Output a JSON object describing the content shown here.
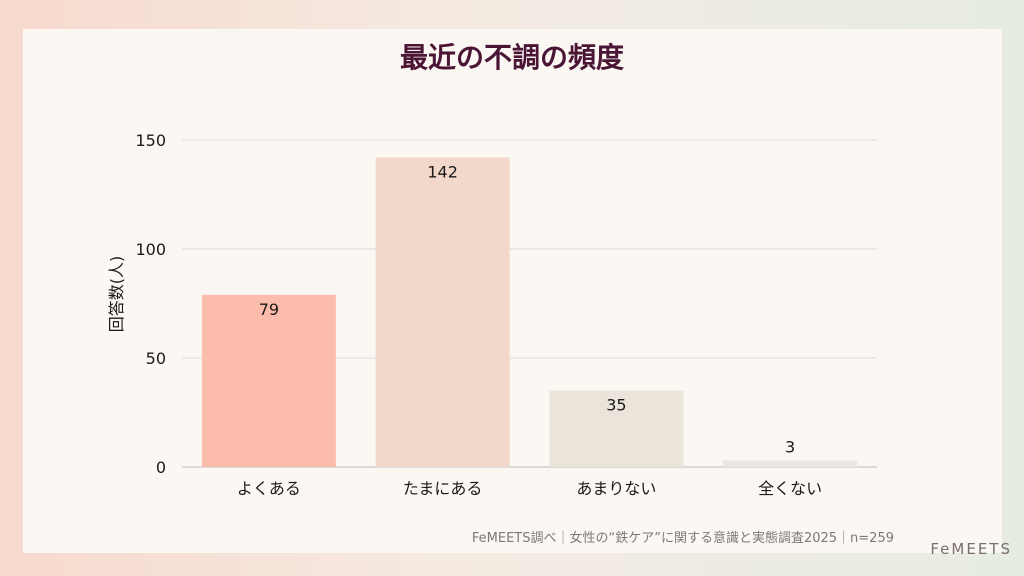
{
  "page": {
    "footnote": "FeMEETS調べ｜女性の“鉄ケア”に関する意識と実態調査2025｜n=259",
    "logo": "FeMEETS"
  },
  "chart_data": {
    "type": "bar",
    "title": "最近の不調の頻度",
    "xlabel": "",
    "ylabel": "回答数(人)",
    "categories": [
      "よくある",
      "たまにある",
      "あまりない",
      "全くない"
    ],
    "values": [
      79,
      142,
      35,
      3
    ],
    "data_labels": [
      "79",
      "142",
      "35",
      "3"
    ],
    "yticks": [
      "0",
      "50",
      "100",
      "150"
    ],
    "ylim": [
      0,
      150
    ],
    "grid": true,
    "colors": [
      "#fbbcab",
      "#f1d8ca",
      "#ebe4da",
      "#e9e9e3"
    ]
  }
}
